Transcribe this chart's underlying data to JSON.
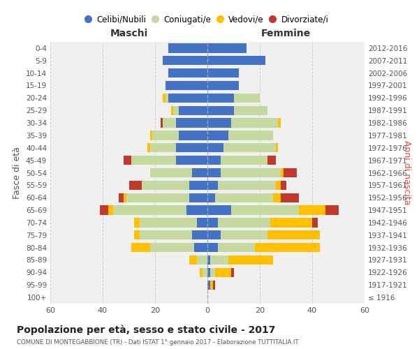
{
  "age_groups": [
    "100+",
    "95-99",
    "90-94",
    "85-89",
    "80-84",
    "75-79",
    "70-74",
    "65-69",
    "60-64",
    "55-59",
    "50-54",
    "45-49",
    "40-44",
    "35-39",
    "30-34",
    "25-29",
    "20-24",
    "15-19",
    "10-14",
    "5-9",
    "0-4"
  ],
  "birth_years": [
    "≤ 1916",
    "1917-1921",
    "1922-1926",
    "1927-1931",
    "1932-1936",
    "1937-1941",
    "1942-1946",
    "1947-1951",
    "1952-1956",
    "1957-1961",
    "1962-1966",
    "1967-1971",
    "1972-1976",
    "1977-1981",
    "1982-1986",
    "1987-1991",
    "1992-1996",
    "1997-2001",
    "2002-2006",
    "2007-2011",
    "2012-2016"
  ],
  "maschi": {
    "celibi": [
      0,
      0,
      0,
      0,
      5,
      6,
      4,
      8,
      7,
      7,
      6,
      12,
      12,
      11,
      12,
      11,
      15,
      16,
      15,
      17,
      15
    ],
    "coniugati": [
      0,
      0,
      2,
      4,
      17,
      20,
      22,
      28,
      24,
      18,
      16,
      17,
      10,
      10,
      5,
      2,
      1,
      0,
      0,
      0,
      0
    ],
    "vedovi": [
      0,
      0,
      1,
      3,
      7,
      2,
      2,
      2,
      1,
      0,
      0,
      0,
      1,
      1,
      0,
      1,
      1,
      0,
      0,
      0,
      0
    ],
    "divorziati": [
      0,
      0,
      0,
      0,
      0,
      0,
      0,
      3,
      2,
      5,
      0,
      3,
      0,
      0,
      1,
      0,
      0,
      0,
      0,
      0,
      0
    ]
  },
  "femmine": {
    "nubili": [
      0,
      1,
      1,
      1,
      4,
      5,
      4,
      9,
      3,
      4,
      5,
      5,
      6,
      8,
      9,
      10,
      10,
      12,
      12,
      22,
      15
    ],
    "coniugate": [
      0,
      0,
      2,
      7,
      14,
      18,
      20,
      26,
      22,
      22,
      23,
      18,
      20,
      17,
      18,
      13,
      10,
      0,
      0,
      0,
      0
    ],
    "vedove": [
      0,
      1,
      6,
      17,
      25,
      20,
      16,
      10,
      3,
      2,
      1,
      0,
      1,
      0,
      1,
      0,
      0,
      0,
      0,
      0,
      0
    ],
    "divorziate": [
      0,
      1,
      1,
      0,
      0,
      0,
      2,
      5,
      7,
      2,
      5,
      3,
      0,
      0,
      0,
      0,
      0,
      0,
      0,
      0,
      0
    ]
  },
  "color_celibi": "#4472c4",
  "color_coniugati": "#c5d9a0",
  "color_vedovi": "#ffc000",
  "color_divorziati": "#c0392b",
  "title": "Popolazione per età, sesso e stato civile - 2017",
  "subtitle": "COMUNE DI MONTEGABBIONE (TR) - Dati ISTAT 1° gennaio 2017 - Elaborazione TUTTITALIA.IT",
  "xlabel_left": "Maschi",
  "xlabel_right": "Femmine",
  "ylabel_left": "Fasce di età",
  "ylabel_right": "Anni di nascita",
  "xlim": 60,
  "bg_color": "#ffffff",
  "grid_color": "#cccccc"
}
